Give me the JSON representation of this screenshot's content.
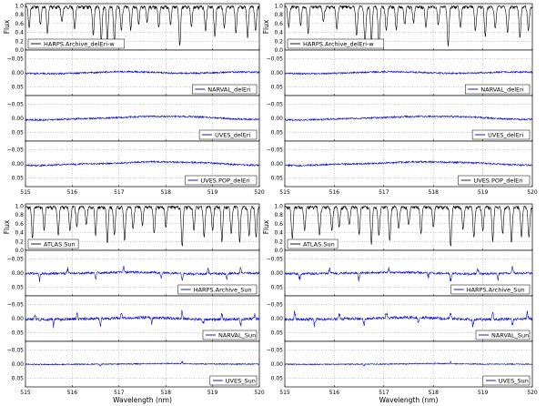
{
  "figure": {
    "ylabel_flux": "Flux",
    "xlabel": "Wavelength (nm)",
    "x_ticks": [
      "515",
      "516",
      "517",
      "518",
      "519",
      "520"
    ],
    "flux_ticks": [
      "1.0",
      "0.8",
      "0.6",
      "0.4",
      "0.2",
      "0.0"
    ],
    "resid_ticks": [
      "−0.05",
      "0.00",
      "0.05"
    ],
    "colors": {
      "flux": "#000000",
      "residual": "#0000cc"
    }
  },
  "chart_data": [
    {
      "type": "line",
      "position": "top-left",
      "x_range": [
        515,
        520
      ],
      "flux_ylim": [
        0,
        1.05
      ],
      "resid_ylim": [
        -0.08,
        0.08
      ],
      "grid": true,
      "legend_placement": "lower-left for flux, lower-right for residuals",
      "flux_series": {
        "name": "HARPS.Archive_delEri-w",
        "lines": [
          [
            515.08,
            0.55
          ],
          [
            515.32,
            0.6
          ],
          [
            515.47,
            0.42
          ],
          [
            515.78,
            0.65
          ],
          [
            516.05,
            0.5
          ],
          [
            516.45,
            0.35
          ],
          [
            516.62,
            0.2
          ],
          [
            516.75,
            0.25
          ],
          [
            516.9,
            0.15
          ],
          [
            517.05,
            0.45
          ],
          [
            517.25,
            0.5
          ],
          [
            517.42,
            0.62
          ],
          [
            517.6,
            0.65
          ],
          [
            517.85,
            0.55
          ],
          [
            518.1,
            0.6
          ],
          [
            518.3,
            0.12
          ],
          [
            518.55,
            0.55
          ],
          [
            518.85,
            0.45
          ],
          [
            519.05,
            0.35
          ],
          [
            519.25,
            0.5
          ],
          [
            519.5,
            0.4
          ],
          [
            519.75,
            0.3
          ],
          [
            519.92,
            0.45
          ]
        ]
      },
      "residual_series": [
        {
          "name": "NARVAL_delEri",
          "bumps": [
            [
              515.5,
              0.003
            ],
            [
              517.2,
              -0.004
            ],
            [
              518.4,
              0.002
            ],
            [
              519.6,
              -0.003
            ]
          ],
          "noise": 0.003,
          "spikes": []
        },
        {
          "name": "UVES_delEri",
          "bumps": [
            [
              515.3,
              0.006
            ],
            [
              517.6,
              -0.006
            ],
            [
              518.6,
              -0.005
            ],
            [
              519.8,
              0.004
            ]
          ],
          "noise": 0.003,
          "spikes": []
        },
        {
          "name": "UVES.POP_delEri",
          "bumps": [
            [
              515.2,
              0.006
            ],
            [
              517.7,
              -0.007
            ],
            [
              518.8,
              -0.004
            ],
            [
              519.8,
              0.005
            ]
          ],
          "noise": 0.003,
          "spikes": []
        }
      ]
    },
    {
      "type": "line",
      "position": "top-right",
      "x_range": [
        515,
        520
      ],
      "flux_ylim": [
        0,
        1.05
      ],
      "resid_ylim": [
        -0.08,
        0.08
      ],
      "grid": true,
      "legend_placement": "lower-left for flux, lower-right for residuals",
      "flux_series": {
        "name": "HARPS.Archive_delEri-w",
        "lines": [
          [
            515.08,
            0.55
          ],
          [
            515.32,
            0.6
          ],
          [
            515.47,
            0.42
          ],
          [
            515.78,
            0.65
          ],
          [
            516.05,
            0.5
          ],
          [
            516.45,
            0.35
          ],
          [
            516.62,
            0.2
          ],
          [
            516.75,
            0.25
          ],
          [
            516.9,
            0.15
          ],
          [
            517.05,
            0.45
          ],
          [
            517.25,
            0.5
          ],
          [
            517.42,
            0.62
          ],
          [
            517.6,
            0.65
          ],
          [
            517.85,
            0.55
          ],
          [
            518.1,
            0.6
          ],
          [
            518.3,
            0.12
          ],
          [
            518.55,
            0.55
          ],
          [
            518.85,
            0.45
          ],
          [
            519.05,
            0.35
          ],
          [
            519.25,
            0.5
          ],
          [
            519.5,
            0.4
          ],
          [
            519.75,
            0.3
          ],
          [
            519.92,
            0.45
          ]
        ]
      },
      "residual_series": [
        {
          "name": "NARVAL_delEri",
          "bumps": [
            [
              515.5,
              0.003
            ],
            [
              517.2,
              -0.004
            ],
            [
              518.4,
              0.002
            ],
            [
              519.6,
              -0.003
            ]
          ],
          "noise": 0.003,
          "spikes": []
        },
        {
          "name": "UVES_delEri",
          "bumps": [
            [
              515.3,
              0.006
            ],
            [
              517.6,
              -0.006
            ],
            [
              518.6,
              -0.005
            ],
            [
              519.8,
              0.004
            ]
          ],
          "noise": 0.003,
          "spikes": []
        },
        {
          "name": "UVES.POP_delEri",
          "bumps": [
            [
              515.2,
              0.006
            ],
            [
              517.7,
              -0.007
            ],
            [
              518.8,
              -0.004
            ],
            [
              519.8,
              0.005
            ]
          ],
          "noise": 0.003,
          "spikes": []
        }
      ]
    },
    {
      "type": "line",
      "position": "bottom-left",
      "x_range": [
        515,
        520
      ],
      "flux_ylim": [
        0,
        1.05
      ],
      "resid_ylim": [
        -0.08,
        0.08
      ],
      "grid": true,
      "legend_placement": "lower-left for flux, lower-right for residuals",
      "flux_series": {
        "name": "ATLAS.Sun",
        "lines": [
          [
            515.15,
            0.3
          ],
          [
            515.4,
            0.5
          ],
          [
            515.7,
            0.35
          ],
          [
            515.95,
            0.45
          ],
          [
            516.1,
            0.55
          ],
          [
            516.3,
            0.6
          ],
          [
            516.5,
            0.4
          ],
          [
            516.75,
            0.2
          ],
          [
            516.9,
            0.35
          ],
          [
            517.12,
            0.25
          ],
          [
            517.3,
            0.5
          ],
          [
            517.5,
            0.6
          ],
          [
            517.75,
            0.4
          ],
          [
            518.0,
            0.55
          ],
          [
            518.35,
            0.12
          ],
          [
            518.6,
            0.5
          ],
          [
            518.82,
            0.3
          ],
          [
            519.0,
            0.45
          ],
          [
            519.2,
            0.25
          ],
          [
            519.4,
            0.4
          ],
          [
            519.58,
            0.2
          ],
          [
            519.78,
            0.35
          ],
          [
            519.93,
            0.3
          ]
        ]
      },
      "residual_series": [
        {
          "name": "HARPS.Archive_Sun",
          "bumps": [
            [
              515.4,
              0.002
            ],
            [
              517.3,
              -0.003
            ],
            [
              518.7,
              0.003
            ]
          ],
          "noise": 0.004,
          "spikes": [
            [
              515.3,
              0.02
            ],
            [
              515.9,
              -0.018
            ],
            [
              516.5,
              0.025
            ],
            [
              517.1,
              -0.02
            ],
            [
              517.9,
              0.015
            ],
            [
              518.35,
              0.022
            ],
            [
              518.9,
              -0.02
            ],
            [
              519.3,
              0.018
            ],
            [
              519.6,
              -0.022
            ]
          ]
        },
        {
          "name": "NARVAL_Sun",
          "bumps": [
            [
              515.4,
              0.003
            ],
            [
              517.6,
              -0.004
            ],
            [
              518.9,
              0.003
            ]
          ],
          "noise": 0.005,
          "spikes": [
            [
              515.2,
              -0.025
            ],
            [
              515.6,
              0.02
            ],
            [
              516.1,
              -0.022
            ],
            [
              516.6,
              0.028
            ],
            [
              517.05,
              -0.02
            ],
            [
              517.7,
              0.018
            ],
            [
              518.35,
              -0.025
            ],
            [
              518.8,
              0.02
            ],
            [
              519.2,
              -0.022
            ],
            [
              519.6,
              0.025
            ],
            [
              519.9,
              -0.018
            ]
          ]
        },
        {
          "name": "UVES_Sun",
          "bumps": [
            [
              515.6,
              0.001
            ],
            [
              518.0,
              -0.002
            ]
          ],
          "noise": 0.002,
          "spikes": [
            [
              516.6,
              0.006
            ],
            [
              518.35,
              -0.006
            ]
          ]
        }
      ]
    },
    {
      "type": "line",
      "position": "bottom-right",
      "x_range": [
        515,
        520
      ],
      "flux_ylim": [
        0,
        1.05
      ],
      "resid_ylim": [
        -0.08,
        0.08
      ],
      "grid": true,
      "legend_placement": "lower-left for flux, lower-right for residuals",
      "flux_series": {
        "name": "ATLAS.Sun",
        "lines": [
          [
            515.15,
            0.3
          ],
          [
            515.4,
            0.5
          ],
          [
            515.7,
            0.35
          ],
          [
            515.95,
            0.45
          ],
          [
            516.1,
            0.55
          ],
          [
            516.3,
            0.6
          ],
          [
            516.5,
            0.4
          ],
          [
            516.75,
            0.2
          ],
          [
            516.9,
            0.35
          ],
          [
            517.12,
            0.25
          ],
          [
            517.3,
            0.5
          ],
          [
            517.5,
            0.6
          ],
          [
            517.75,
            0.4
          ],
          [
            518.0,
            0.55
          ],
          [
            518.35,
            0.12
          ],
          [
            518.6,
            0.5
          ],
          [
            518.82,
            0.3
          ],
          [
            519.0,
            0.45
          ],
          [
            519.2,
            0.25
          ],
          [
            519.4,
            0.4
          ],
          [
            519.58,
            0.2
          ],
          [
            519.78,
            0.35
          ],
          [
            519.93,
            0.3
          ]
        ]
      },
      "residual_series": [
        {
          "name": "HARPS.Archive_Sun",
          "bumps": [
            [
              515.4,
              0.002
            ],
            [
              517.3,
              -0.003
            ],
            [
              518.7,
              0.003
            ]
          ],
          "noise": 0.004,
          "spikes": [
            [
              515.3,
              0.02
            ],
            [
              515.9,
              -0.018
            ],
            [
              516.5,
              0.025
            ],
            [
              517.1,
              -0.02
            ],
            [
              517.9,
              0.015
            ],
            [
              518.35,
              0.022
            ],
            [
              518.9,
              -0.02
            ],
            [
              519.3,
              0.018
            ],
            [
              519.6,
              -0.022
            ]
          ]
        },
        {
          "name": "NARVAL_Sun",
          "bumps": [
            [
              515.4,
              0.003
            ],
            [
              517.6,
              -0.004
            ],
            [
              518.9,
              0.003
            ]
          ],
          "noise": 0.005,
          "spikes": [
            [
              515.2,
              -0.025
            ],
            [
              515.6,
              0.02
            ],
            [
              516.1,
              -0.022
            ],
            [
              516.6,
              0.028
            ],
            [
              517.05,
              -0.02
            ],
            [
              517.7,
              0.018
            ],
            [
              518.35,
              -0.025
            ],
            [
              518.8,
              0.02
            ],
            [
              519.2,
              -0.022
            ],
            [
              519.6,
              0.025
            ],
            [
              519.9,
              -0.018
            ]
          ]
        },
        {
          "name": "UVES_Sun",
          "bumps": [
            [
              515.6,
              0.001
            ],
            [
              518.0,
              -0.002
            ]
          ],
          "noise": 0.002,
          "spikes": [
            [
              516.6,
              0.006
            ],
            [
              518.35,
              -0.006
            ]
          ]
        }
      ]
    }
  ]
}
